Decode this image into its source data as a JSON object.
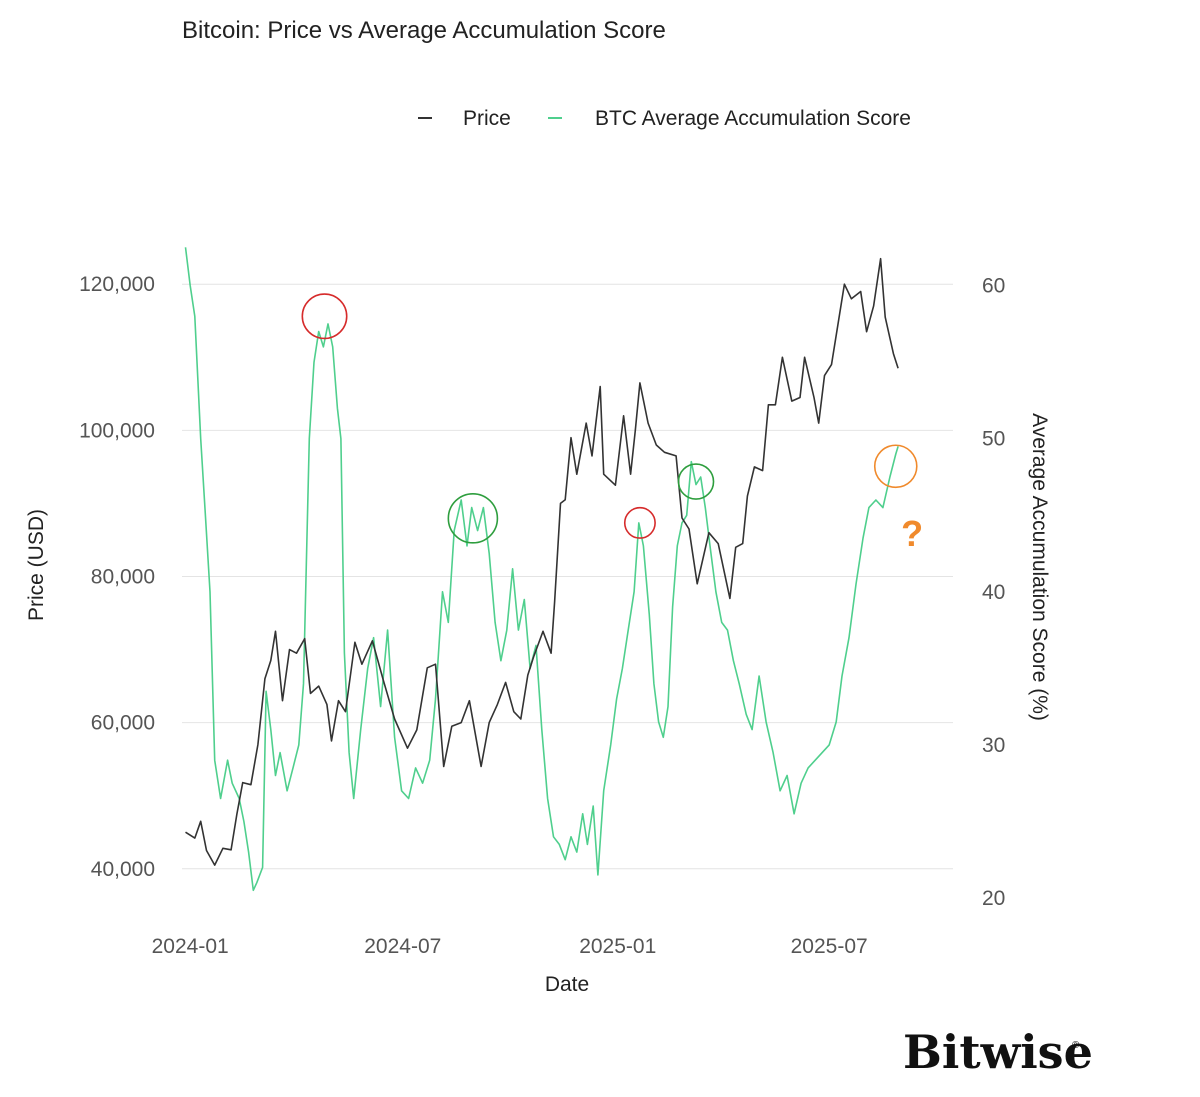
{
  "chart_data": {
    "type": "line",
    "title": "Bitcoin: Price vs Average Accumulation Score",
    "xlabel": "Date",
    "ylabel_left": "Price (USD)",
    "ylabel_right": "Average Accumulation Score (%)",
    "x_ticks": [
      "2024-01",
      "2024-07",
      "2025-01",
      "2025-07"
    ],
    "x_range": [
      "2023-12-25",
      "2025-10-15"
    ],
    "y_left_ticks": [
      "40,000",
      "60,000",
      "80,000",
      "100,000",
      "120,000"
    ],
    "y_left_range": [
      36000,
      124000
    ],
    "y_right_ticks": [
      "20",
      "30",
      "40",
      "50",
      "60"
    ],
    "y_right_range": [
      20,
      62
    ],
    "legend": [
      "Price",
      "BTC Average Accumulation Score"
    ],
    "legend_position": "top-right",
    "grid": true,
    "series": [
      {
        "name": "Price",
        "axis": "left",
        "color": "#333333",
        "points": [
          [
            "2023-12-28",
            45000
          ],
          [
            "2024-01-05",
            44200
          ],
          [
            "2024-01-10",
            46500
          ],
          [
            "2024-01-15",
            42500
          ],
          [
            "2024-01-22",
            40500
          ],
          [
            "2024-01-29",
            42800
          ],
          [
            "2024-02-05",
            42600
          ],
          [
            "2024-02-10",
            47500
          ],
          [
            "2024-02-15",
            51800
          ],
          [
            "2024-02-22",
            51500
          ],
          [
            "2024-02-28",
            57000
          ],
          [
            "2024-03-05",
            66000
          ],
          [
            "2024-03-10",
            68500
          ],
          [
            "2024-03-14",
            72500
          ],
          [
            "2024-03-20",
            63000
          ],
          [
            "2024-03-26",
            70000
          ],
          [
            "2024-04-01",
            69500
          ],
          [
            "2024-04-08",
            71500
          ],
          [
            "2024-04-13",
            64000
          ],
          [
            "2024-04-20",
            65000
          ],
          [
            "2024-04-27",
            62500
          ],
          [
            "2024-05-01",
            57500
          ],
          [
            "2024-05-07",
            63000
          ],
          [
            "2024-05-13",
            61500
          ],
          [
            "2024-05-21",
            71000
          ],
          [
            "2024-05-27",
            68000
          ],
          [
            "2024-06-05",
            71200
          ],
          [
            "2024-06-14",
            66000
          ],
          [
            "2024-06-24",
            60500
          ],
          [
            "2024-07-05",
            56500
          ],
          [
            "2024-07-13",
            59000
          ],
          [
            "2024-07-22",
            67500
          ],
          [
            "2024-07-29",
            68000
          ],
          [
            "2024-08-05",
            54000
          ],
          [
            "2024-08-12",
            59500
          ],
          [
            "2024-08-20",
            60000
          ],
          [
            "2024-08-27",
            63000
          ],
          [
            "2024-09-06",
            54000
          ],
          [
            "2024-09-13",
            60000
          ],
          [
            "2024-09-20",
            62500
          ],
          [
            "2024-09-27",
            65500
          ],
          [
            "2024-10-04",
            61500
          ],
          [
            "2024-10-10",
            60500
          ],
          [
            "2024-10-16",
            66500
          ],
          [
            "2024-10-21",
            69000
          ],
          [
            "2024-10-29",
            72500
          ],
          [
            "2024-11-05",
            69500
          ],
          [
            "2024-11-08",
            76500
          ],
          [
            "2024-11-13",
            90000
          ],
          [
            "2024-11-17",
            90500
          ],
          [
            "2024-11-22",
            99000
          ],
          [
            "2024-11-27",
            94000
          ],
          [
            "2024-12-05",
            101000
          ],
          [
            "2024-12-10",
            96500
          ],
          [
            "2024-12-17",
            106000
          ],
          [
            "2024-12-20",
            94000
          ],
          [
            "2024-12-30",
            92500
          ],
          [
            "2025-01-06",
            102000
          ],
          [
            "2025-01-12",
            94000
          ],
          [
            "2025-01-16",
            100000
          ],
          [
            "2025-01-20",
            106500
          ],
          [
            "2025-01-27",
            101000
          ],
          [
            "2025-02-03",
            98000
          ],
          [
            "2025-02-10",
            97000
          ],
          [
            "2025-02-20",
            96500
          ],
          [
            "2025-02-25",
            88000
          ],
          [
            "2025-03-03",
            86500
          ],
          [
            "2025-03-10",
            79000
          ],
          [
            "2025-03-20",
            86000
          ],
          [
            "2025-03-28",
            84500
          ],
          [
            "2025-04-07",
            77000
          ],
          [
            "2025-04-12",
            84000
          ],
          [
            "2025-04-18",
            84500
          ],
          [
            "2025-04-22",
            91000
          ],
          [
            "2025-04-28",
            95000
          ],
          [
            "2025-05-05",
            94500
          ],
          [
            "2025-05-10",
            103500
          ],
          [
            "2025-05-16",
            103500
          ],
          [
            "2025-05-22",
            110000
          ],
          [
            "2025-05-30",
            104000
          ],
          [
            "2025-06-06",
            104500
          ],
          [
            "2025-06-10",
            110000
          ],
          [
            "2025-06-18",
            104500
          ],
          [
            "2025-06-22",
            101000
          ],
          [
            "2025-06-27",
            107500
          ],
          [
            "2025-07-03",
            109000
          ],
          [
            "2025-07-10",
            116000
          ],
          [
            "2025-07-14",
            120000
          ],
          [
            "2025-07-20",
            118000
          ],
          [
            "2025-07-28",
            119000
          ],
          [
            "2025-08-02",
            113500
          ],
          [
            "2025-08-08",
            117000
          ],
          [
            "2025-08-14",
            123500
          ],
          [
            "2025-08-18",
            115500
          ],
          [
            "2025-08-25",
            110500
          ],
          [
            "2025-08-29",
            108500
          ]
        ]
      },
      {
        "name": "BTC Average Accumulation Score",
        "axis": "right",
        "color": "#4fcf8d",
        "points": [
          [
            "2023-12-28",
            62.5
          ],
          [
            "2024-01-01",
            60.0
          ],
          [
            "2024-01-05",
            58.0
          ],
          [
            "2024-01-10",
            50.0
          ],
          [
            "2024-01-14",
            45.0
          ],
          [
            "2024-01-18",
            40.0
          ],
          [
            "2024-01-22",
            29.0
          ],
          [
            "2024-01-27",
            26.5
          ],
          [
            "2024-02-02",
            29.0
          ],
          [
            "2024-02-06",
            27.5
          ],
          [
            "2024-02-12",
            26.5
          ],
          [
            "2024-02-16",
            25.0
          ],
          [
            "2024-02-20",
            23.0
          ],
          [
            "2024-02-24",
            20.5
          ],
          [
            "2024-02-27",
            21.0
          ],
          [
            "2024-03-03",
            22.0
          ],
          [
            "2024-03-06",
            33.5
          ],
          [
            "2024-03-10",
            31.0
          ],
          [
            "2024-03-14",
            28.0
          ],
          [
            "2024-03-18",
            29.5
          ],
          [
            "2024-03-24",
            27.0
          ],
          [
            "2024-03-29",
            28.5
          ],
          [
            "2024-04-03",
            30.0
          ],
          [
            "2024-04-07",
            34.0
          ],
          [
            "2024-04-12",
            50.0
          ],
          [
            "2024-04-16",
            55.0
          ],
          [
            "2024-04-20",
            57.0
          ],
          [
            "2024-04-24",
            56.0
          ],
          [
            "2024-04-28",
            57.5
          ],
          [
            "2024-05-02",
            56.0
          ],
          [
            "2024-05-06",
            52.0
          ],
          [
            "2024-05-09",
            50.0
          ],
          [
            "2024-05-12",
            36.0
          ],
          [
            "2024-05-16",
            29.5
          ],
          [
            "2024-05-20",
            26.5
          ],
          [
            "2024-05-26",
            31.0
          ],
          [
            "2024-06-01",
            35.0
          ],
          [
            "2024-06-06",
            37.0
          ],
          [
            "2024-06-12",
            32.5
          ],
          [
            "2024-06-18",
            37.5
          ],
          [
            "2024-06-24",
            30.5
          ],
          [
            "2024-06-30",
            27.0
          ],
          [
            "2024-07-06",
            26.5
          ],
          [
            "2024-07-12",
            28.5
          ],
          [
            "2024-07-18",
            27.5
          ],
          [
            "2024-07-24",
            29.0
          ],
          [
            "2024-07-29",
            33.0
          ],
          [
            "2024-08-04",
            40.0
          ],
          [
            "2024-08-09",
            38.0
          ],
          [
            "2024-08-14",
            44.0
          ],
          [
            "2024-08-20",
            46.0
          ],
          [
            "2024-08-25",
            43.0
          ],
          [
            "2024-08-29",
            45.5
          ],
          [
            "2024-09-03",
            44.0
          ],
          [
            "2024-09-08",
            45.5
          ],
          [
            "2024-09-13",
            42.5
          ],
          [
            "2024-09-18",
            38.0
          ],
          [
            "2024-09-23",
            35.5
          ],
          [
            "2024-09-28",
            37.5
          ],
          [
            "2024-10-03",
            41.5
          ],
          [
            "2024-10-08",
            37.5
          ],
          [
            "2024-10-13",
            39.5
          ],
          [
            "2024-10-18",
            35.0
          ],
          [
            "2024-10-23",
            36.5
          ],
          [
            "2024-10-28",
            31.0
          ],
          [
            "2024-11-02",
            26.5
          ],
          [
            "2024-11-07",
            24.0
          ],
          [
            "2024-11-12",
            23.5
          ],
          [
            "2024-11-17",
            22.5
          ],
          [
            "2024-11-22",
            24.0
          ],
          [
            "2024-11-27",
            23.0
          ],
          [
            "2024-12-02",
            25.5
          ],
          [
            "2024-12-06",
            23.5
          ],
          [
            "2024-12-11",
            26.0
          ],
          [
            "2024-12-15",
            21.5
          ],
          [
            "2024-12-20",
            27.0
          ],
          [
            "2024-12-26",
            30.0
          ],
          [
            "2024-12-31",
            33.0
          ],
          [
            "2025-01-05",
            35.0
          ],
          [
            "2025-01-10",
            37.5
          ],
          [
            "2025-01-15",
            40.0
          ],
          [
            "2025-01-19",
            44.5
          ],
          [
            "2025-01-23",
            43.0
          ],
          [
            "2025-01-28",
            38.5
          ],
          [
            "2025-02-01",
            34.0
          ],
          [
            "2025-02-05",
            31.5
          ],
          [
            "2025-02-09",
            30.5
          ],
          [
            "2025-02-13",
            32.5
          ],
          [
            "2025-02-17",
            39.0
          ],
          [
            "2025-02-21",
            43.0
          ],
          [
            "2025-02-25",
            44.5
          ],
          [
            "2025-03-01",
            45.0
          ],
          [
            "2025-03-05",
            48.5
          ],
          [
            "2025-03-09",
            47.0
          ],
          [
            "2025-03-13",
            47.5
          ],
          [
            "2025-03-17",
            45.5
          ],
          [
            "2025-03-21",
            43.0
          ],
          [
            "2025-03-26",
            40.0
          ],
          [
            "2025-03-31",
            38.0
          ],
          [
            "2025-04-05",
            37.5
          ],
          [
            "2025-04-10",
            35.5
          ],
          [
            "2025-04-15",
            34.0
          ],
          [
            "2025-04-21",
            32.0
          ],
          [
            "2025-04-26",
            31.0
          ],
          [
            "2025-05-02",
            34.5
          ],
          [
            "2025-05-08",
            31.5
          ],
          [
            "2025-05-14",
            29.5
          ],
          [
            "2025-05-20",
            27.0
          ],
          [
            "2025-05-26",
            28.0
          ],
          [
            "2025-06-01",
            25.5
          ],
          [
            "2025-06-07",
            27.5
          ],
          [
            "2025-06-13",
            28.5
          ],
          [
            "2025-06-19",
            29.0
          ],
          [
            "2025-06-25",
            29.5
          ],
          [
            "2025-07-01",
            30.0
          ],
          [
            "2025-07-07",
            31.5
          ],
          [
            "2025-07-12",
            34.5
          ],
          [
            "2025-07-18",
            37.0
          ],
          [
            "2025-07-24",
            40.5
          ],
          [
            "2025-07-30",
            43.5
          ],
          [
            "2025-08-04",
            45.5
          ],
          [
            "2025-08-10",
            46.0
          ],
          [
            "2025-08-16",
            45.5
          ],
          [
            "2025-08-22",
            47.5
          ],
          [
            "2025-08-27",
            49.0
          ],
          [
            "2025-08-29",
            49.5
          ]
        ]
      }
    ],
    "annotations": [
      {
        "type": "circle",
        "color": "#d62b2b",
        "date": "2024-04-25",
        "axis": "right",
        "value": 58.0,
        "radius_days": 19
      },
      {
        "type": "circle",
        "color": "#2e9e3e",
        "date": "2024-08-30",
        "axis": "right",
        "value": 44.8,
        "radius_days": 21
      },
      {
        "type": "circle",
        "color": "#d62b2b",
        "date": "2025-01-20",
        "axis": "right",
        "value": 44.5,
        "radius_days": 13
      },
      {
        "type": "circle",
        "color": "#2e9e3e",
        "date": "2025-03-09",
        "axis": "right",
        "value": 47.2,
        "radius_days": 15
      },
      {
        "type": "circle",
        "color": "#f08a2c",
        "date": "2025-08-27",
        "axis": "right",
        "value": 48.2,
        "radius_days": 18
      },
      {
        "type": "text",
        "text": "?",
        "color": "#f08a2c",
        "date": "2025-09-10",
        "axis": "right",
        "value": 43.0
      }
    ]
  },
  "brand": {
    "name": "Bitwise",
    "mark": "®"
  }
}
